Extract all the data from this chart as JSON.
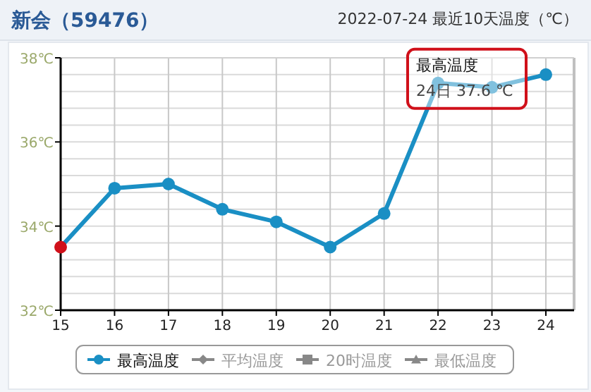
{
  "chart_data": {
    "type": "line",
    "title": "新会（59476）",
    "subtitle": "2022-07-24 最近10天温度（℃）",
    "categories": [
      "15",
      "16",
      "17",
      "18",
      "19",
      "20",
      "21",
      "22",
      "23",
      "24"
    ],
    "series": [
      {
        "name": "最高温度",
        "color": "#1a8fc4",
        "colors": [
          "#d0101a",
          "#1a8fc4",
          "#1a8fc4",
          "#1a8fc4",
          "#1a8fc4",
          "#1a8fc4",
          "#1a8fc4",
          "#1a8fc4",
          "#1a8fc4",
          "#1a8fc4"
        ],
        "marker": "circle",
        "values": [
          33.5,
          34.9,
          35.0,
          34.4,
          34.1,
          33.5,
          34.3,
          37.4,
          37.3,
          37.6
        ]
      },
      {
        "name": "平均温度",
        "color": "#888888",
        "marker": "diamond",
        "values": [
          null,
          null,
          null,
          null,
          null,
          null,
          null,
          null,
          null,
          null
        ]
      },
      {
        "name": "20时温度",
        "color": "#888888",
        "marker": "square",
        "values": [
          null,
          null,
          null,
          null,
          null,
          null,
          null,
          null,
          null,
          null
        ]
      },
      {
        "name": "最低温度",
        "color": "#888888",
        "marker": "triangle",
        "values": [
          null,
          null,
          null,
          null,
          null,
          null,
          null,
          null,
          null,
          null
        ]
      }
    ],
    "ylim": [
      32,
      38
    ],
    "yticks": [
      {
        "value": 32,
        "label": "32℃"
      },
      {
        "value": 32.4,
        "label": null
      },
      {
        "value": 32.8,
        "label": null
      },
      {
        "value": 33.2,
        "label": null
      },
      {
        "value": 33.6,
        "label": null
      },
      {
        "value": 34,
        "label": "34℃"
      },
      {
        "value": 34.4,
        "label": null
      },
      {
        "value": 34.8,
        "label": null
      },
      {
        "value": 35.2,
        "label": null
      },
      {
        "value": 35.6,
        "label": null
      },
      {
        "value": 36,
        "label": "36℃"
      },
      {
        "value": 36.4,
        "label": null
      },
      {
        "value": 36.8,
        "label": null
      },
      {
        "value": 37.2,
        "label": null
      },
      {
        "value": 37.6,
        "label": null
      },
      {
        "value": 38,
        "label": "38℃"
      }
    ],
    "grid": true,
    "legend": "bottom",
    "annotations": [
      {
        "text": "最高温度\n24日 37.6 ℃",
        "x": "24",
        "y": 37.6
      }
    ]
  }
}
